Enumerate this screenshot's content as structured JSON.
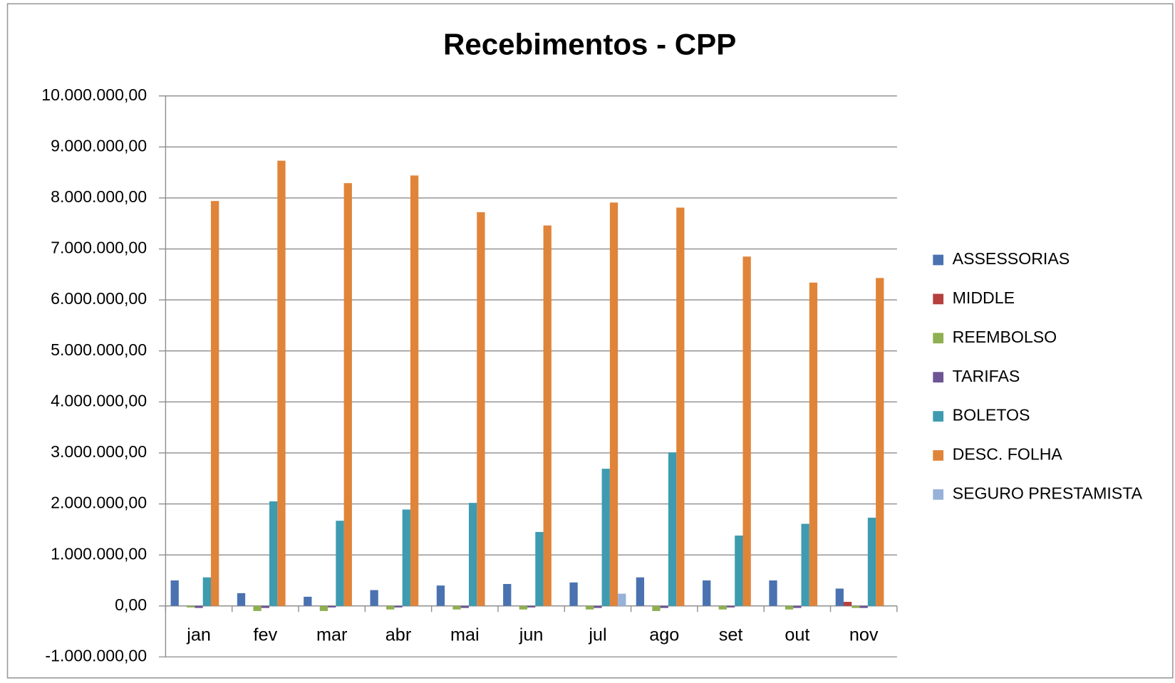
{
  "chart_data": {
    "type": "bar",
    "title": "Recebimentos - CPP",
    "categories": [
      "jan",
      "fev",
      "mar",
      "abr",
      "mai",
      "jun",
      "jul",
      "ago",
      "set",
      "out",
      "nov"
    ],
    "series": [
      {
        "name": "ASSESSORIAS",
        "color": "#4a72b0",
        "values": [
          500000,
          250000,
          180000,
          310000,
          400000,
          430000,
          460000,
          560000,
          500000,
          500000,
          340000
        ]
      },
      {
        "name": "MIDDLE",
        "color": "#b5403e",
        "values": [
          0,
          0,
          0,
          0,
          0,
          0,
          0,
          0,
          0,
          0,
          80000
        ]
      },
      {
        "name": "REEMBOLSO",
        "color": "#8fb050",
        "values": [
          -30000,
          -100000,
          -100000,
          -70000,
          -70000,
          -70000,
          -70000,
          -100000,
          -70000,
          -70000,
          -40000
        ]
      },
      {
        "name": "TARIFAS",
        "color": "#6e5595",
        "values": [
          -40000,
          -40000,
          -30000,
          -30000,
          -40000,
          -30000,
          -40000,
          -40000,
          -30000,
          -40000,
          -40000
        ]
      },
      {
        "name": "BOLETOS",
        "color": "#3e9bb0",
        "values": [
          560000,
          2050000,
          1670000,
          1890000,
          2020000,
          1450000,
          2690000,
          3010000,
          1380000,
          1610000,
          1730000
        ]
      },
      {
        "name": "DESC. FOLHA",
        "color": "#e0843a",
        "values": [
          7940000,
          8730000,
          8290000,
          8440000,
          7720000,
          7460000,
          7910000,
          7810000,
          6850000,
          6340000,
          6430000
        ]
      },
      {
        "name": "SEGURO PRESTAMISTA",
        "color": "#97b2d8",
        "values": [
          0,
          0,
          0,
          0,
          0,
          0,
          240000,
          0,
          0,
          0,
          0
        ]
      }
    ],
    "ylim": [
      -1000000,
      10000000
    ],
    "yticks": [
      {
        "value": -1000000,
        "label": "-1.000.000,00"
      },
      {
        "value": 0,
        "label": "0,00"
      },
      {
        "value": 1000000,
        "label": "1.000.000,00"
      },
      {
        "value": 2000000,
        "label": "2.000.000,00"
      },
      {
        "value": 3000000,
        "label": "3.000.000,00"
      },
      {
        "value": 4000000,
        "label": "4.000.000,00"
      },
      {
        "value": 5000000,
        "label": "5.000.000,00"
      },
      {
        "value": 6000000,
        "label": "6.000.000,00"
      },
      {
        "value": 7000000,
        "label": "7.000.000,00"
      },
      {
        "value": 8000000,
        "label": "8.000.000,00"
      },
      {
        "value": 9000000,
        "label": "9.000.000,00"
      },
      {
        "value": 10000000,
        "label": "10.000.000,00"
      }
    ],
    "grid": true,
    "legend": "right"
  }
}
